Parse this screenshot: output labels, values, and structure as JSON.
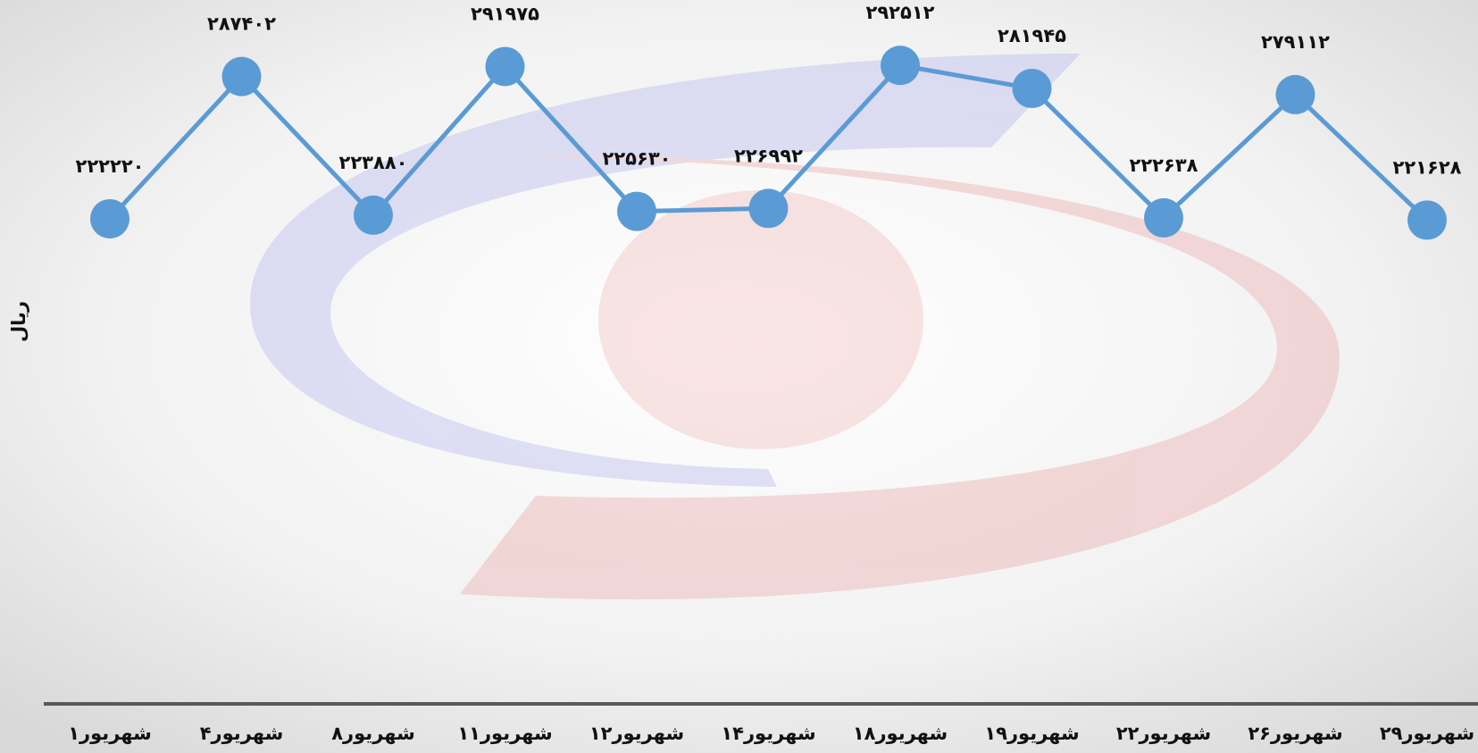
{
  "chart_data": {
    "type": "line",
    "y_label": "ریال",
    "categories": [
      "۱شهریور",
      "۴شهریور",
      "۸شهریور",
      "۱۱شهریور",
      "۱۲شهریور",
      "۱۴شهریور",
      "۱۸شهریور",
      "۱۹شهریور",
      "۲۲شهریور",
      "۲۶شهریور",
      "۲۹شهریور"
    ],
    "values": [
      222220,
      287402,
      223880,
      291975,
      225630,
      226992,
      292512,
      281945,
      222638,
      279112,
      221628
    ],
    "value_labels": [
      "۲۲۲۲۲۰",
      "۲۸۷۴۰۲",
      "۲۲۳۸۸۰",
      "۲۹۱۹۷۵",
      "۲۲۵۶۳۰",
      "۲۲۶۹۹۲",
      "۲۹۲۵۱۲",
      "۲۸۱۹۴۵",
      "۲۲۲۶۳۸",
      "۲۷۹۱۱۲",
      "۲۲۱۶۲۸"
    ],
    "color": "#5b9bd5",
    "ylim": [
      0,
      320000
    ]
  }
}
